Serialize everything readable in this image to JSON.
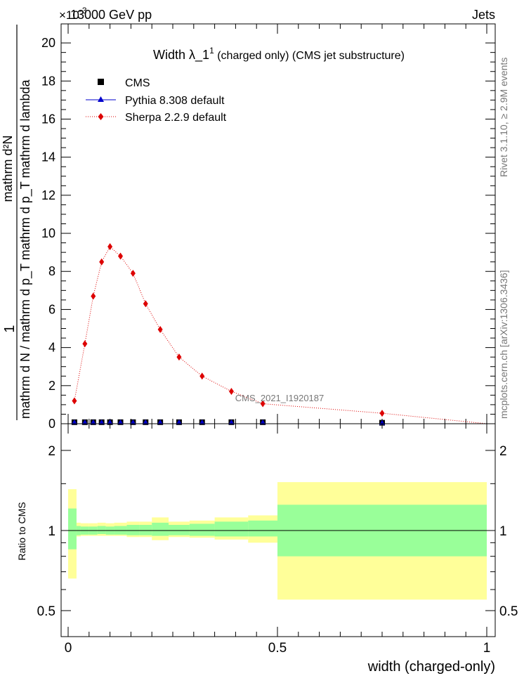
{
  "header": {
    "beam": "13000 GeV pp",
    "process": "Jets",
    "exponent": "×10",
    "exponent_power": "-3"
  },
  "right_notes": {
    "rivet": "Rivet 3.1.10, ≥ 2.9M events",
    "mcplots": "mcplots.cern.ch [arXiv:1306.3436]"
  },
  "watermark": "CMS_2021_I1920187",
  "colors": {
    "cms": "#000000",
    "pythia": "#0000cc",
    "sherpa": "#dd0000",
    "band_inner": "#99ff99",
    "band_outer": "#ffff99"
  },
  "chart_data": [
    {
      "type": "line",
      "title": "Width λ_1^1 (charged only) (CMS jet substructure)",
      "title_main": "Width λ_1",
      "title_sup": "1",
      "title_rest": " (charged only) (CMS jet substructure)",
      "ylabel_num": "1",
      "ylabel_den": "mathrm d N / mathrm d p_T mathrm d p_T mathrm d lambda",
      "ylabel_num2": "mathrm d²N",
      "xlim": [
        0,
        1
      ],
      "ylim": [
        0,
        21
      ],
      "yticks": [
        "0",
        "2",
        "4",
        "6",
        "8",
        "10",
        "12",
        "14",
        "16",
        "18",
        "20"
      ],
      "legend_position": "top-left",
      "x_edges": [
        0.0,
        0.03,
        0.05,
        0.07,
        0.09,
        0.11,
        0.14,
        0.17,
        0.2,
        0.24,
        0.29,
        0.35,
        0.43,
        0.5,
        1.0
      ],
      "series": [
        {
          "name": "CMS",
          "marker": "square",
          "x": [
            0.015,
            0.04,
            0.06,
            0.08,
            0.1,
            0.125,
            0.155,
            0.185,
            0.22,
            0.265,
            0.32,
            0.39,
            0.465,
            0.75
          ],
          "values": [
            0.08,
            0.08,
            0.08,
            0.08,
            0.08,
            0.08,
            0.08,
            0.08,
            0.08,
            0.08,
            0.08,
            0.08,
            0.08,
            0.05
          ]
        },
        {
          "name": "Pythia 8.308 default",
          "marker": "triangle",
          "x": [
            0.015,
            0.04,
            0.06,
            0.08,
            0.1,
            0.125,
            0.155,
            0.185,
            0.22,
            0.265,
            0.32,
            0.39,
            0.465,
            0.75
          ],
          "values": [
            0.08,
            0.08,
            0.08,
            0.08,
            0.08,
            0.08,
            0.08,
            0.08,
            0.08,
            0.08,
            0.08,
            0.08,
            0.08,
            0.05
          ]
        },
        {
          "name": "Sherpa 2.2.9 default",
          "marker": "diamond",
          "x": [
            0.015,
            0.04,
            0.06,
            0.08,
            0.1,
            0.125,
            0.155,
            0.185,
            0.22,
            0.265,
            0.32,
            0.39,
            0.465,
            0.75
          ],
          "values": [
            1.2,
            4.2,
            6.7,
            8.5,
            9.3,
            8.8,
            7.9,
            6.3,
            4.95,
            3.5,
            2.5,
            1.7,
            1.05,
            0.55
          ]
        }
      ]
    },
    {
      "type": "area",
      "ylabel": "Ratio to CMS",
      "xlabel": "width (charged-only)",
      "xlim": [
        0,
        1
      ],
      "ylim": [
        0.33,
        2.3
      ],
      "yticks": [
        "0.5",
        "1",
        "2"
      ],
      "xticks": [
        "0",
        "0.5",
        "1"
      ],
      "x_edges": [
        0.0,
        0.02,
        0.03,
        0.05,
        0.07,
        0.09,
        0.11,
        0.14,
        0.17,
        0.2,
        0.24,
        0.29,
        0.35,
        0.43,
        0.5,
        1.0
      ],
      "inner_low": [
        0.85,
        0.96,
        0.965,
        0.965,
        0.97,
        0.965,
        0.965,
        0.96,
        0.96,
        0.955,
        0.96,
        0.955,
        0.95,
        0.95,
        0.8
      ],
      "inner_high": [
        1.21,
        1.04,
        1.035,
        1.035,
        1.04,
        1.035,
        1.04,
        1.05,
        1.05,
        1.07,
        1.05,
        1.06,
        1.08,
        1.09,
        1.25
      ],
      "outer_low": [
        0.66,
        0.95,
        0.955,
        0.955,
        0.955,
        0.955,
        0.955,
        0.945,
        0.945,
        0.92,
        0.945,
        0.94,
        0.925,
        0.9,
        0.55
      ],
      "outer_high": [
        1.43,
        1.07,
        1.065,
        1.065,
        1.07,
        1.065,
        1.07,
        1.08,
        1.08,
        1.12,
        1.08,
        1.09,
        1.12,
        1.14,
        1.52
      ],
      "reference": 1
    }
  ]
}
